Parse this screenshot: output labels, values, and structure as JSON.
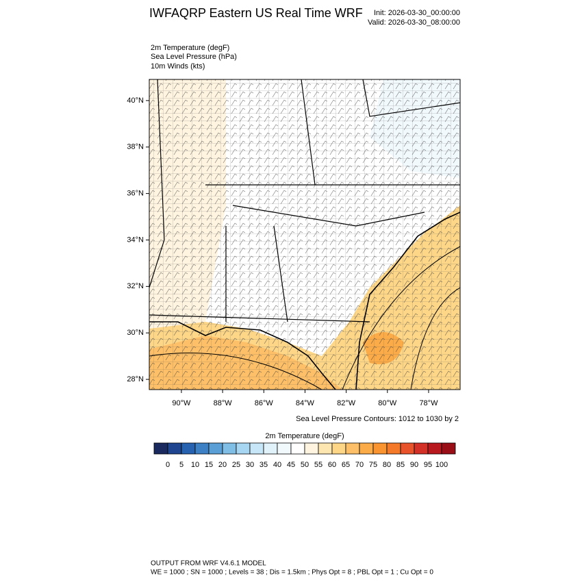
{
  "header": {
    "title": "IWFAQRP Eastern US Real Time WRF",
    "init": "Init: 2026-03-30_00:00:00",
    "valid": "Valid: 2026-03-30_08:00:00"
  },
  "fields": [
    "2m Temperature   (degF)",
    "Sea Level Pressure   (hPa)",
    "10m Winds   (kts)"
  ],
  "map": {
    "lat_lim": [
      27.56,
      40.91
    ],
    "lon_lim": [
      -91.56,
      -76.47
    ],
    "lat_ticks": [
      {
        "value": 28,
        "label": "28°N"
      },
      {
        "value": 30,
        "label": "30°N"
      },
      {
        "value": 32,
        "label": "32°N"
      },
      {
        "value": 34,
        "label": "34°N"
      },
      {
        "value": 36,
        "label": "36°N"
      },
      {
        "value": 38,
        "label": "38°N"
      },
      {
        "value": 40,
        "label": "40°N"
      }
    ],
    "lon_ticks": [
      {
        "value": -90,
        "label": "90°W"
      },
      {
        "value": -88,
        "label": "88°W"
      },
      {
        "value": -86,
        "label": "86°W"
      },
      {
        "value": -84,
        "label": "84°W"
      },
      {
        "value": -82,
        "label": "82°W"
      },
      {
        "value": -80,
        "label": "80°W"
      },
      {
        "value": -78,
        "label": "78°W"
      }
    ],
    "contour_note": "Sea Level Pressure Contours: 1012 to 1030 by 2"
  },
  "colorbar": {
    "title": "2m Temperature  (degF)",
    "levels": [
      0,
      5,
      10,
      15,
      20,
      25,
      30,
      35,
      40,
      45,
      50,
      55,
      60,
      65,
      70,
      75,
      80,
      85,
      90,
      95,
      100
    ],
    "colors": [
      "#1a2a5e",
      "#1f4590",
      "#2662b0",
      "#3d80c3",
      "#5aa0d6",
      "#80bee6",
      "#a6d6f2",
      "#c7e6f7",
      "#e2f2fb",
      "#f2f9fd",
      "#ffffff",
      "#fff4e0",
      "#fee6b0",
      "#fdd688",
      "#fdc068",
      "#fbab48",
      "#f99431",
      "#f47a2a",
      "#e8532c",
      "#d33027",
      "#b8191f",
      "#9a0e17"
    ]
  },
  "footer": {
    "line1": "OUTPUT FROM WRF V4.6.1 MODEL",
    "line2": "WE = 1000 ; SN = 1000 ; Levels = 38 ; Dis = 1.5km ; Phys Opt = 8 ; PBL Opt = 1 ; Cu Opt = 0"
  }
}
